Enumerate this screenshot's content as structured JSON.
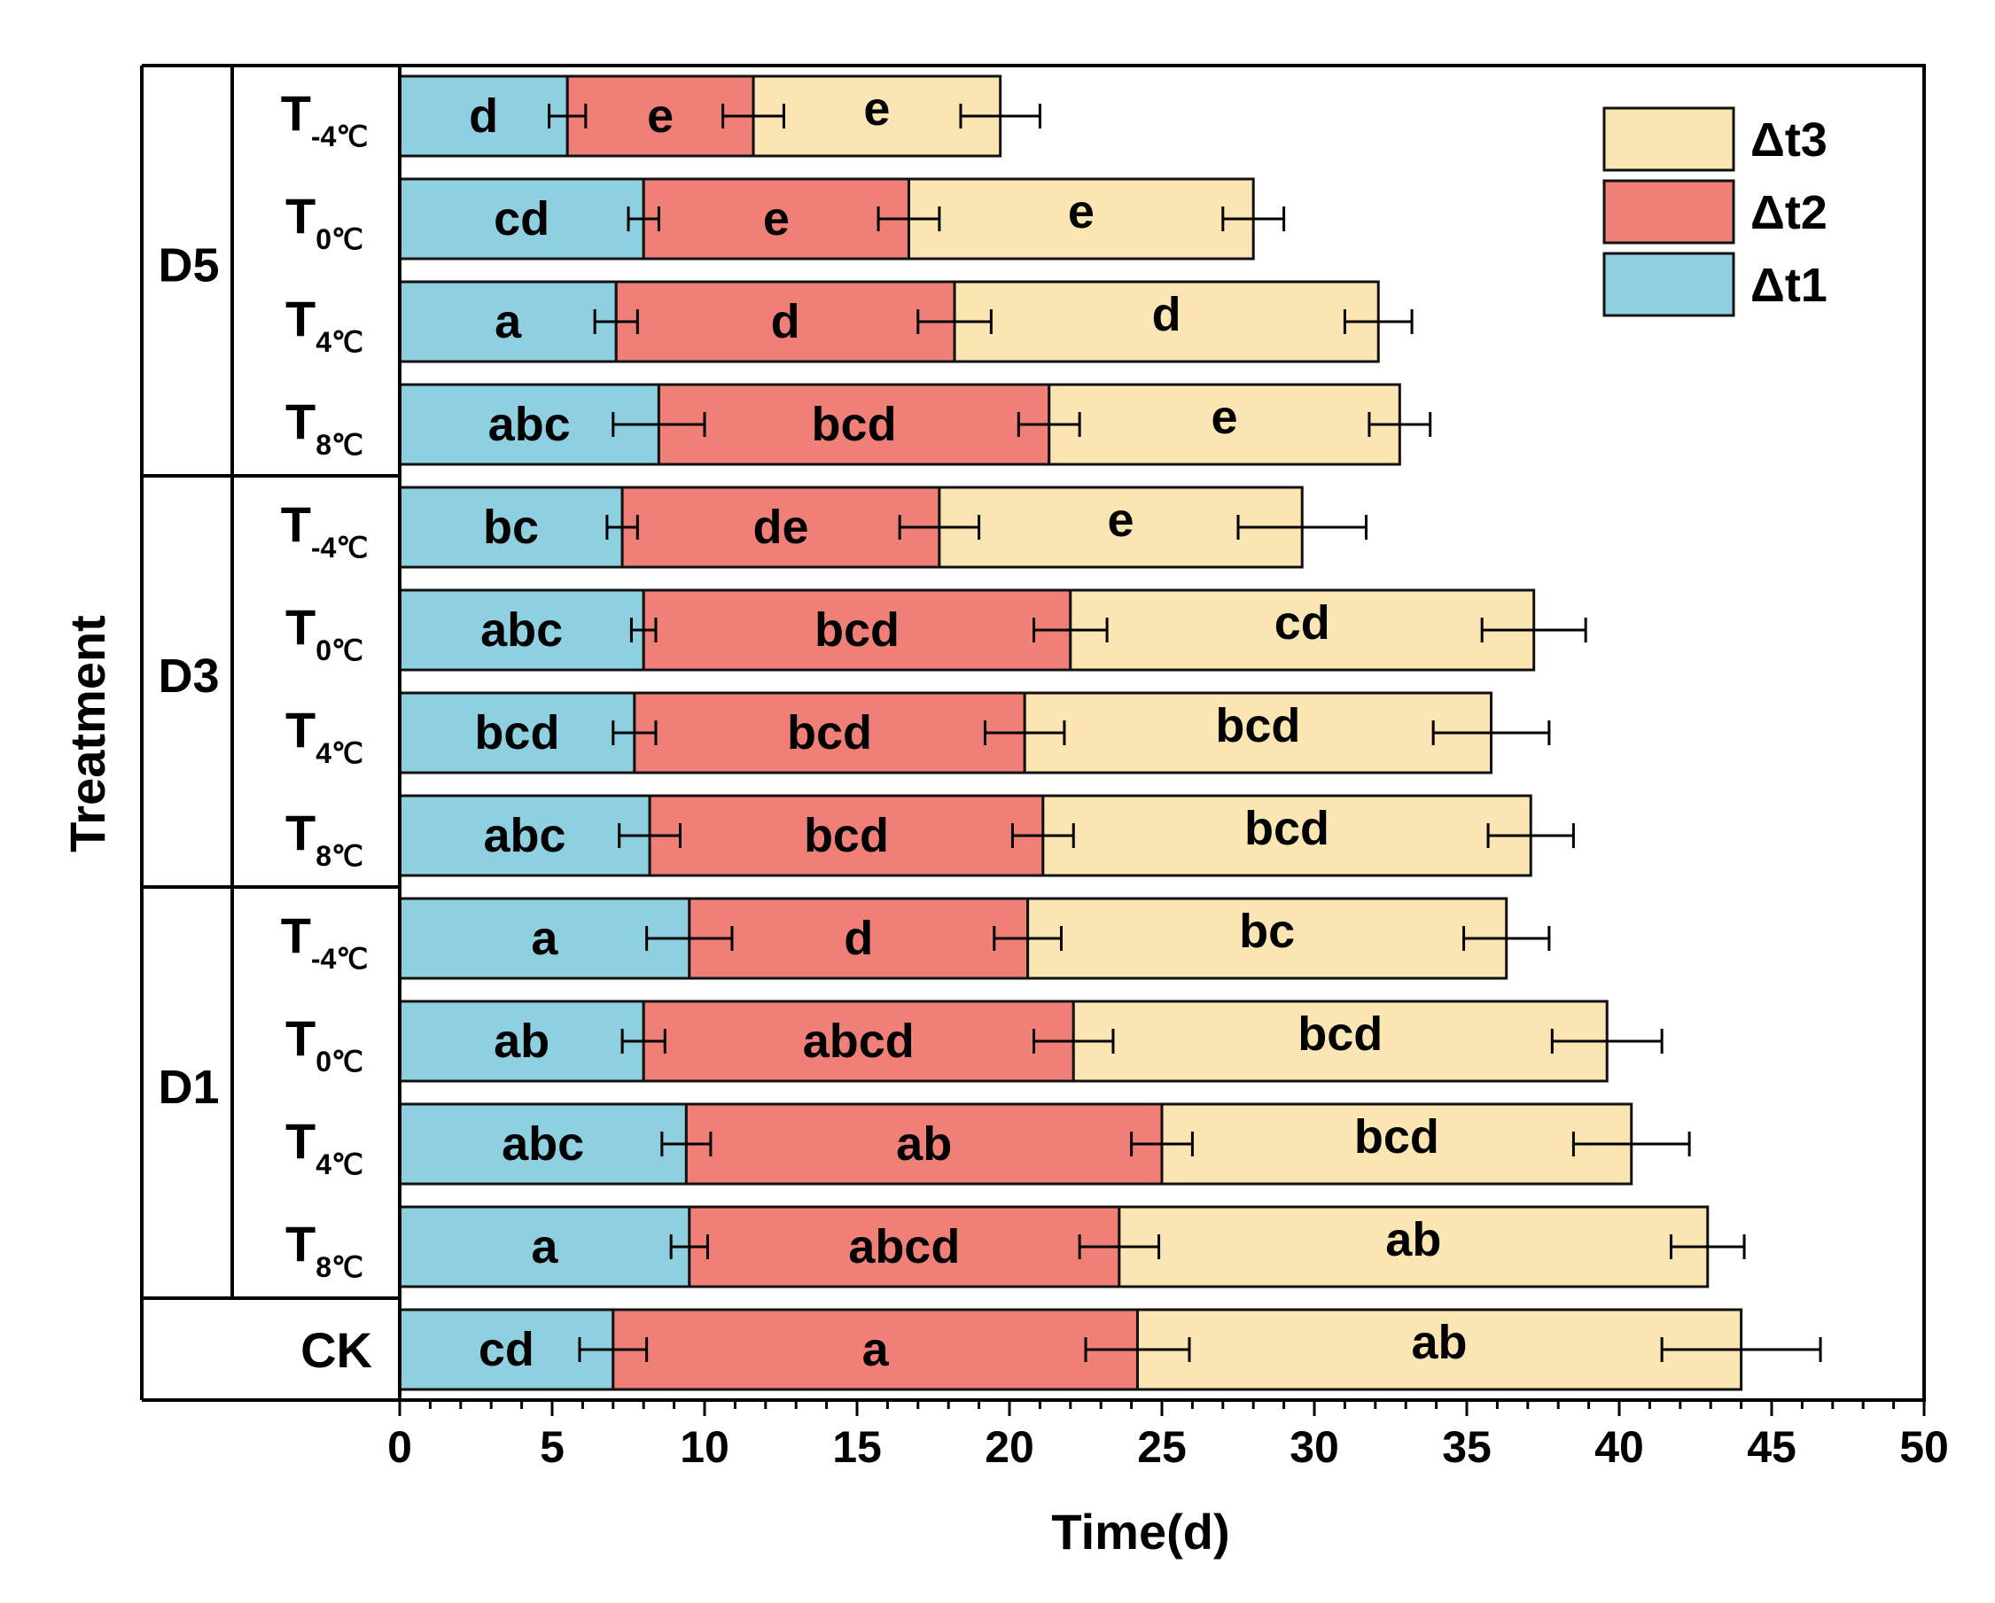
{
  "chart_data": {
    "type": "bar",
    "orientation": "horizontal",
    "stacked": true,
    "title": "",
    "xlabel": "Time(d)",
    "ylabel": "Treatment",
    "xlim": [
      0,
      50
    ],
    "x_major_ticks": [
      "0",
      "5",
      "10",
      "15",
      "20",
      "25",
      "30",
      "35",
      "40",
      "45",
      "50"
    ],
    "grid": false,
    "legend_position": "top-right",
    "colors": {
      "dt1": "#8ecfe0",
      "dt2": "#f08077",
      "dt3": "#fbe6b3"
    },
    "legend": [
      "Δt3",
      "Δt2",
      "Δt1"
    ],
    "groups": [
      {
        "label": "D5",
        "rows": [
          0,
          1,
          2,
          3
        ]
      },
      {
        "label": "D3",
        "rows": [
          4,
          5,
          6,
          7
        ]
      },
      {
        "label": "D1",
        "rows": [
          8,
          9,
          10,
          11
        ]
      },
      {
        "label": "",
        "rows": [
          12
        ]
      }
    ],
    "rows": [
      {
        "main": "T",
        "sub": "-4℃",
        "dt1": 5.5,
        "dt2": 6.1,
        "dt3": 8.1,
        "err1": 0.6,
        "err2": 1.0,
        "err3": 1.3,
        "letters": [
          "d",
          "e",
          "e"
        ]
      },
      {
        "main": "T",
        "sub": "0℃",
        "dt1": 8.0,
        "dt2": 8.7,
        "dt3": 11.3,
        "err1": 0.5,
        "err2": 1.0,
        "err3": 1.0,
        "letters": [
          "cd",
          "e",
          "e"
        ]
      },
      {
        "main": "T",
        "sub": "4℃",
        "dt1": 7.1,
        "dt2": 11.1,
        "dt3": 13.9,
        "err1": 0.7,
        "err2": 1.2,
        "err3": 1.1,
        "letters": [
          "a",
          "d",
          "d"
        ]
      },
      {
        "main": "T",
        "sub": "8℃",
        "dt1": 8.5,
        "dt2": 12.8,
        "dt3": 11.5,
        "err1": 1.5,
        "err2": 1.0,
        "err3": 1.0,
        "letters": [
          "abc",
          "bcd",
          "e"
        ]
      },
      {
        "main": "T",
        "sub": "-4℃",
        "dt1": 7.3,
        "dt2": 10.4,
        "dt3": 11.9,
        "err1": 0.5,
        "err2": 1.3,
        "err3": 2.1,
        "letters": [
          "bc",
          "de",
          "e"
        ]
      },
      {
        "main": "T",
        "sub": "0℃",
        "dt1": 8.0,
        "dt2": 14.0,
        "dt3": 15.2,
        "err1": 0.4,
        "err2": 1.2,
        "err3": 1.7,
        "letters": [
          "abc",
          "bcd",
          "cd"
        ]
      },
      {
        "main": "T",
        "sub": "4℃",
        "dt1": 7.7,
        "dt2": 12.8,
        "dt3": 15.3,
        "err1": 0.7,
        "err2": 1.3,
        "err3": 1.9,
        "letters": [
          "bcd",
          "bcd",
          "bcd"
        ]
      },
      {
        "main": "T",
        "sub": "8℃",
        "dt1": 8.2,
        "dt2": 12.9,
        "dt3": 16.0,
        "err1": 1.0,
        "err2": 1.0,
        "err3": 1.4,
        "letters": [
          "abc",
          "bcd",
          "bcd"
        ]
      },
      {
        "main": "T",
        "sub": "-4℃",
        "dt1": 9.5,
        "dt2": 11.1,
        "dt3": 15.7,
        "err1": 1.4,
        "err2": 1.1,
        "err3": 1.4,
        "letters": [
          "a",
          "d",
          "bc"
        ]
      },
      {
        "main": "T",
        "sub": "0℃",
        "dt1": 8.0,
        "dt2": 14.1,
        "dt3": 17.5,
        "err1": 0.7,
        "err2": 1.3,
        "err3": 1.8,
        "letters": [
          "ab",
          "abcd",
          "bcd"
        ]
      },
      {
        "main": "T",
        "sub": "4℃",
        "dt1": 9.4,
        "dt2": 15.6,
        "dt3": 15.4,
        "err1": 0.8,
        "err2": 1.0,
        "err3": 1.9,
        "letters": [
          "abc",
          "ab",
          "bcd"
        ]
      },
      {
        "main": "T",
        "sub": "8℃",
        "dt1": 9.5,
        "dt2": 14.1,
        "dt3": 19.3,
        "err1": 0.6,
        "err2": 1.3,
        "err3": 1.2,
        "letters": [
          "a",
          "abcd",
          "ab"
        ]
      },
      {
        "main": "CK",
        "sub": "",
        "dt1": 7.0,
        "dt2": 17.2,
        "dt3": 19.8,
        "err1": 1.1,
        "err2": 1.7,
        "err3": 2.6,
        "letters": [
          "cd",
          "a",
          "ab"
        ]
      }
    ]
  }
}
